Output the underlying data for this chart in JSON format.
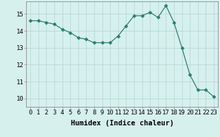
{
  "x": [
    0,
    1,
    2,
    3,
    4,
    5,
    6,
    7,
    8,
    9,
    10,
    11,
    12,
    13,
    14,
    15,
    16,
    17,
    18,
    19,
    20,
    21,
    22,
    23
  ],
  "y": [
    14.6,
    14.6,
    14.5,
    14.4,
    14.1,
    13.9,
    13.6,
    13.5,
    13.3,
    13.3,
    13.3,
    13.7,
    14.3,
    14.9,
    14.9,
    15.1,
    14.8,
    15.5,
    14.5,
    13.0,
    11.4,
    10.5,
    10.5,
    10.1
  ],
  "line_color": "#2e7d6e",
  "marker": "D",
  "marker_size": 2.5,
  "bg_color": "#d6f0ee",
  "grid_color": "#b8d8d4",
  "xlabel": "Humidex (Indice chaleur)",
  "xlabel_fontsize": 7.5,
  "ylim": [
    9.5,
    15.75
  ],
  "xlim": [
    -0.5,
    23.5
  ],
  "yticks": [
    10,
    11,
    12,
    13,
    14,
    15
  ],
  "xticks": [
    0,
    1,
    2,
    3,
    4,
    5,
    6,
    7,
    8,
    9,
    10,
    11,
    12,
    13,
    14,
    15,
    16,
    17,
    18,
    19,
    20,
    21,
    22,
    23
  ],
  "tick_fontsize": 6.5
}
